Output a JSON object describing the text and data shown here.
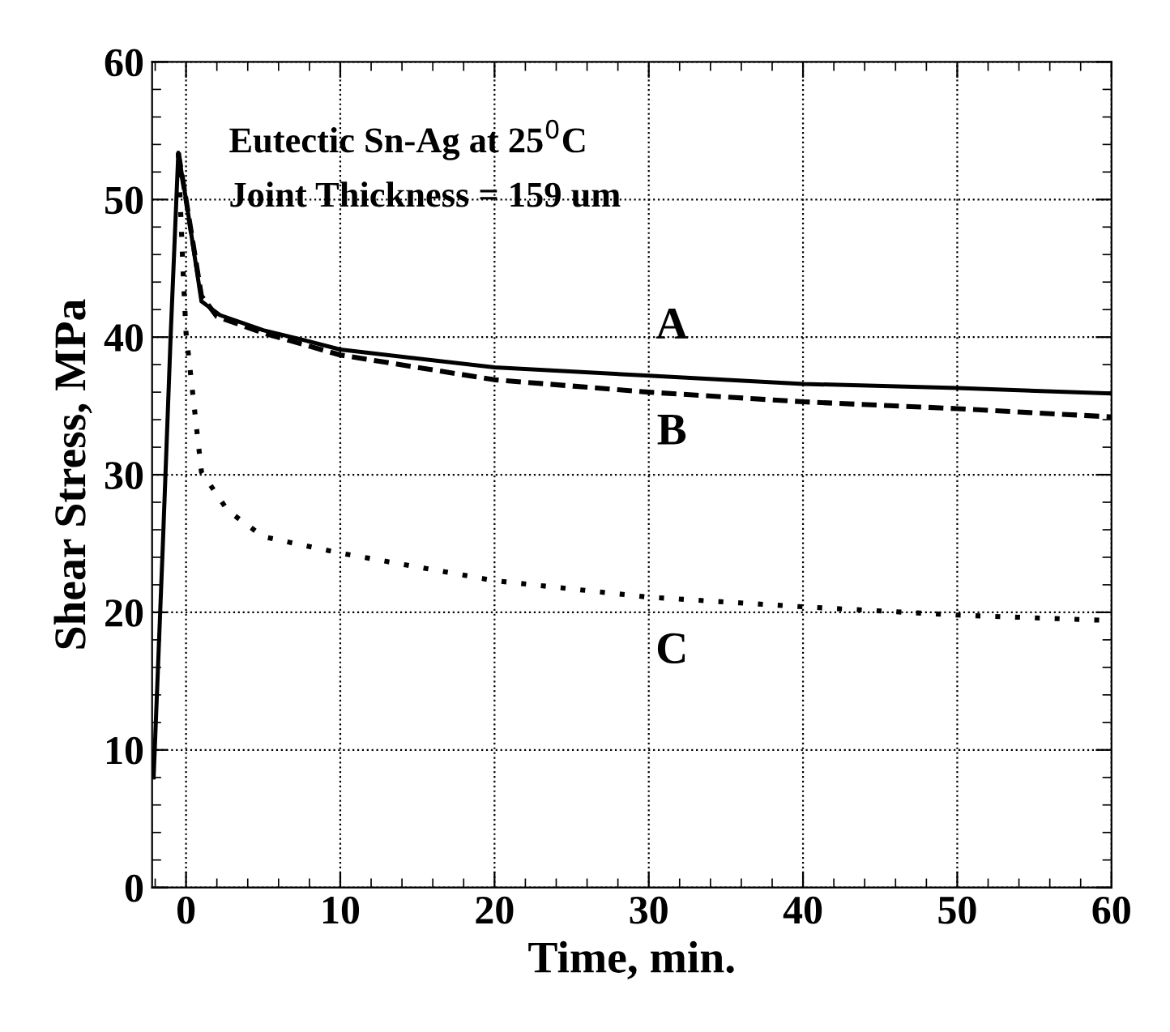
{
  "chart_data": {
    "type": "line",
    "xlabel": "Time, min.",
    "ylabel": "Shear Stress, MPa",
    "annotations": [
      "Eutectic Sn-Ag at 25$^{0}$C",
      "Joint Thickness = 159 um"
    ],
    "xlim": [
      -2.2,
      60
    ],
    "ylim": [
      0,
      60
    ],
    "xticks": [
      0,
      10,
      20,
      30,
      40,
      50,
      60
    ],
    "yticks": [
      0,
      10,
      20,
      30,
      40,
      50,
      60
    ],
    "grid": true,
    "legend": false,
    "marker": "none",
    "series": [
      {
        "name": "A",
        "color": "#000000",
        "line_style": "solid",
        "x": [
          -2.1,
          -1.5,
          -1.0,
          -0.5,
          0,
          1,
          2.2,
          5,
          7.6,
          10,
          20,
          30,
          40,
          50,
          60
        ],
        "values": [
          8,
          25,
          40,
          53.4,
          50,
          42.6,
          41.6,
          40.5,
          39.8,
          39.1,
          37.8,
          37.2,
          36.6,
          36.3,
          35.9
        ]
      },
      {
        "name": "B",
        "color": "#000000",
        "line_style": "dashed",
        "x": [
          -0.5,
          0,
          1,
          2,
          5,
          10,
          20,
          30,
          40,
          50,
          60
        ],
        "values": [
          53.4,
          50,
          43,
          41.5,
          40.3,
          38.7,
          36.9,
          36,
          35.3,
          34.8,
          34.2
        ]
      },
      {
        "name": "C",
        "color": "#000000",
        "line_style": "dotted",
        "x": [
          -0.5,
          -0.2,
          0,
          1,
          2.7,
          5,
          10,
          15,
          20,
          25,
          30,
          40,
          50,
          60
        ],
        "values": [
          53.4,
          45,
          40.3,
          30.2,
          27.4,
          25.5,
          24.3,
          23.3,
          22.3,
          21.7,
          21.1,
          20.4,
          19.8,
          19.4
        ]
      }
    ]
  }
}
